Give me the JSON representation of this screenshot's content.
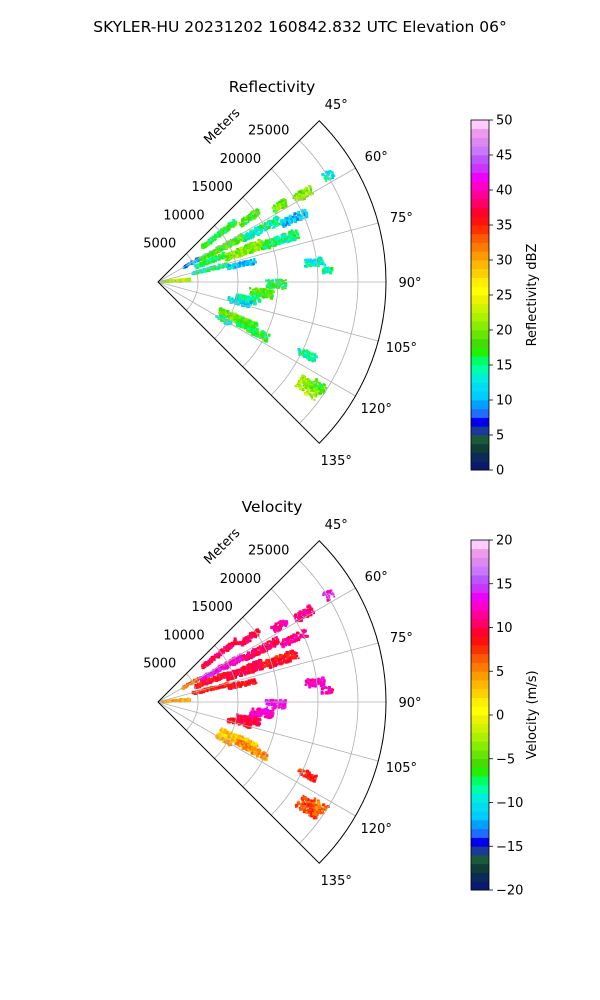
{
  "figure": {
    "suptitle": "SKYLER-HU  20231202  160842.832 UTC Elevation 06°"
  },
  "chart_data": [
    {
      "type": "heatmap",
      "title": "Reflectivity",
      "projection": "polar-sector",
      "theta_ticks": [
        "45°",
        "60°",
        "75°",
        "90°",
        "105°",
        "120°",
        "135°"
      ],
      "theta_range_deg": [
        45,
        135
      ],
      "r_label": "Meters",
      "r_ticks": [
        "5000",
        "10000",
        "15000",
        "20000",
        "25000"
      ],
      "r_range": [
        0,
        28500
      ],
      "grid": true,
      "colorbar": {
        "label": "Reflectivity dBZ",
        "range": [
          0,
          50
        ],
        "ticks": [
          "0",
          "5",
          "10",
          "15",
          "20",
          "25",
          "30",
          "35",
          "40",
          "45",
          "50"
        ],
        "colors": [
          "#0a1a6e",
          "#0a2b5a",
          "#103e36",
          "#1a5a3a",
          "#1a3a9a",
          "#0000ee",
          "#1f6cff",
          "#00a0ff",
          "#00ccff",
          "#00ddee",
          "#00eedd",
          "#00ffaa",
          "#00ff66",
          "#22f000",
          "#44dd00",
          "#66e600",
          "#88ee00",
          "#aaf000",
          "#ccf200",
          "#eef200",
          "#ffff00",
          "#ffee00",
          "#ffd000",
          "#ffb800",
          "#ff9a00",
          "#ff7a00",
          "#ff5a00",
          "#ff3000",
          "#ff1010",
          "#ff0030",
          "#ff0066",
          "#ff0099",
          "#ff00cc",
          "#ee00ff",
          "#cc33ff",
          "#bb55ff",
          "#cc77ff",
          "#dd88ee",
          "#ee99ee",
          "#ffccff"
        ]
      },
      "echoes": [
        {
          "theta": 52,
          "r0": 7000,
          "r1": 12500,
          "w": 1.5,
          "v": 17
        },
        {
          "theta": 55,
          "r0": 12500,
          "r1": 15500,
          "w": 1.5,
          "v": 18
        },
        {
          "theta": 58,
          "r0": 17000,
          "r1": 19000,
          "w": 1.5,
          "v": 19
        },
        {
          "theta": 59,
          "r0": 20000,
          "r1": 22500,
          "w": 1.5,
          "v": 20
        },
        {
          "theta": 58,
          "r0": 24500,
          "r1": 25800,
          "w": 1.2,
          "v": 13
        },
        {
          "theta": 60.5,
          "r0": 3500,
          "r1": 6000,
          "w": 1.5,
          "v": 10
        },
        {
          "theta": 62,
          "r0": 6000,
          "r1": 12000,
          "w": 2.0,
          "v": 18
        },
        {
          "theta": 63,
          "r0": 12000,
          "r1": 17000,
          "w": 1.8,
          "v": 14
        },
        {
          "theta": 65,
          "r0": 17000,
          "r1": 20500,
          "w": 1.5,
          "v": 11
        },
        {
          "theta": 68,
          "r0": 5000,
          "r1": 9000,
          "w": 2.0,
          "v": 16
        },
        {
          "theta": 70,
          "r0": 9000,
          "r1": 14000,
          "w": 2.5,
          "v": 20
        },
        {
          "theta": 71,
          "r0": 14000,
          "r1": 18500,
          "w": 2.0,
          "v": 15
        },
        {
          "theta": 76,
          "r0": 4500,
          "r1": 9000,
          "w": 1.5,
          "v": 15
        },
        {
          "theta": 78,
          "r0": 9000,
          "r1": 12500,
          "w": 1.5,
          "v": 11
        },
        {
          "theta": 83,
          "r0": 18500,
          "r1": 21000,
          "w": 1.5,
          "v": 13
        },
        {
          "theta": 86,
          "r0": 20500,
          "r1": 22000,
          "w": 1.0,
          "v": 14
        },
        {
          "theta": 86,
          "r0": 500,
          "r1": 4000,
          "w": 2.0,
          "v": 22
        },
        {
          "theta": 91,
          "r0": 13500,
          "r1": 16000,
          "w": 2.0,
          "v": 16
        },
        {
          "theta": 96,
          "r0": 11500,
          "r1": 14500,
          "w": 2.2,
          "v": 18
        },
        {
          "theta": 101,
          "r0": 10000,
          "r1": 13000,
          "w": 2.2,
          "v": 15
        },
        {
          "theta": 104,
          "r0": 9000,
          "r1": 12000,
          "w": 1.8,
          "v": 12
        },
        {
          "theta": 115,
          "r0": 8500,
          "r1": 13500,
          "w": 2.5,
          "v": 19
        },
        {
          "theta": 117,
          "r0": 11000,
          "r1": 15500,
          "w": 1.8,
          "v": 17
        },
        {
          "theta": 120,
          "r0": 8500,
          "r1": 10500,
          "w": 1.5,
          "v": 14
        },
        {
          "theta": 116,
          "r0": 19500,
          "r1": 22000,
          "w": 1.2,
          "v": 14
        },
        {
          "theta": 125,
          "r0": 21500,
          "r1": 24500,
          "w": 2.2,
          "v": 21
        },
        {
          "theta": 123,
          "r0": 23000,
          "r1": 25000,
          "w": 1.5,
          "v": 18
        }
      ]
    },
    {
      "type": "heatmap",
      "title": "Velocity",
      "projection": "polar-sector",
      "theta_ticks": [
        "45°",
        "60°",
        "75°",
        "90°",
        "105°",
        "120°",
        "135°"
      ],
      "theta_range_deg": [
        45,
        135
      ],
      "r_label": "Meters",
      "r_ticks": [
        "5000",
        "10000",
        "15000",
        "20000",
        "25000"
      ],
      "r_range": [
        0,
        28500
      ],
      "grid": true,
      "colorbar": {
        "label": "Velocity (m/s)",
        "range": [
          -20,
          20
        ],
        "ticks": [
          "−20",
          "−15",
          "−10",
          "−5",
          "0",
          "5",
          "10",
          "15",
          "20"
        ],
        "colors": [
          "#0a1a6e",
          "#0a2b5a",
          "#103e36",
          "#1a5a3a",
          "#1a3a9a",
          "#0000ee",
          "#1f6cff",
          "#00a0ff",
          "#00ccff",
          "#00ddee",
          "#00eedd",
          "#00ffaa",
          "#00ff66",
          "#22f000",
          "#44dd00",
          "#66e600",
          "#88ee00",
          "#aaf000",
          "#ccf200",
          "#eef200",
          "#ffff00",
          "#ffee00",
          "#ffd000",
          "#ffb800",
          "#ff9a00",
          "#ff7a00",
          "#ff5a00",
          "#ff3000",
          "#ff1010",
          "#ff0030",
          "#ff0066",
          "#ff0099",
          "#ff00cc",
          "#ee00ff",
          "#cc33ff",
          "#bb55ff",
          "#cc77ff",
          "#dd88ee",
          "#ee99ee",
          "#ffccff"
        ]
      },
      "echoes": [
        {
          "theta": 52,
          "r0": 7000,
          "r1": 12500,
          "w": 1.5,
          "v": 10
        },
        {
          "theta": 55,
          "r0": 12500,
          "r1": 15500,
          "w": 1.5,
          "v": 10
        },
        {
          "theta": 58,
          "r0": 17000,
          "r1": 19000,
          "w": 1.5,
          "v": 12
        },
        {
          "theta": 59,
          "r0": 20000,
          "r1": 22500,
          "w": 1.5,
          "v": 11
        },
        {
          "theta": 58,
          "r0": 24500,
          "r1": 25800,
          "w": 1.2,
          "v": 13
        },
        {
          "theta": 60.5,
          "r0": 3500,
          "r1": 6000,
          "w": 1.5,
          "v": 6
        },
        {
          "theta": 62,
          "r0": 6000,
          "r1": 12000,
          "w": 2.0,
          "v": 13
        },
        {
          "theta": 63,
          "r0": 12000,
          "r1": 17000,
          "w": 1.8,
          "v": 10
        },
        {
          "theta": 65,
          "r0": 17000,
          "r1": 20500,
          "w": 1.5,
          "v": 11
        },
        {
          "theta": 68,
          "r0": 5000,
          "r1": 9000,
          "w": 2.0,
          "v": 9
        },
        {
          "theta": 70,
          "r0": 9000,
          "r1": 14000,
          "w": 2.5,
          "v": 10
        },
        {
          "theta": 71,
          "r0": 14000,
          "r1": 18500,
          "w": 2.0,
          "v": 9
        },
        {
          "theta": 76,
          "r0": 4500,
          "r1": 9000,
          "w": 1.5,
          "v": 8
        },
        {
          "theta": 78,
          "r0": 9000,
          "r1": 12500,
          "w": 1.5,
          "v": 9
        },
        {
          "theta": 83,
          "r0": 18500,
          "r1": 21000,
          "w": 1.5,
          "v": 12
        },
        {
          "theta": 86,
          "r0": 20500,
          "r1": 22000,
          "w": 1.0,
          "v": 12
        },
        {
          "theta": 86,
          "r0": 500,
          "r1": 4000,
          "w": 2.0,
          "v": 4
        },
        {
          "theta": 91,
          "r0": 13500,
          "r1": 16000,
          "w": 2.0,
          "v": 13
        },
        {
          "theta": 96,
          "r0": 11500,
          "r1": 14500,
          "w": 2.2,
          "v": 12
        },
        {
          "theta": 101,
          "r0": 10000,
          "r1": 13000,
          "w": 2.2,
          "v": 10
        },
        {
          "theta": 104,
          "r0": 9000,
          "r1": 12000,
          "w": 1.8,
          "v": 9
        },
        {
          "theta": 115,
          "r0": 8500,
          "r1": 13500,
          "w": 2.5,
          "v": 3
        },
        {
          "theta": 117,
          "r0": 11000,
          "r1": 15500,
          "w": 1.8,
          "v": 5
        },
        {
          "theta": 120,
          "r0": 8500,
          "r1": 10500,
          "w": 1.5,
          "v": 4
        },
        {
          "theta": 116,
          "r0": 19500,
          "r1": 22000,
          "w": 1.2,
          "v": 8
        },
        {
          "theta": 125,
          "r0": 21500,
          "r1": 24500,
          "w": 2.2,
          "v": 7
        },
        {
          "theta": 123,
          "r0": 23000,
          "r1": 25000,
          "w": 1.5,
          "v": 6
        }
      ]
    }
  ]
}
